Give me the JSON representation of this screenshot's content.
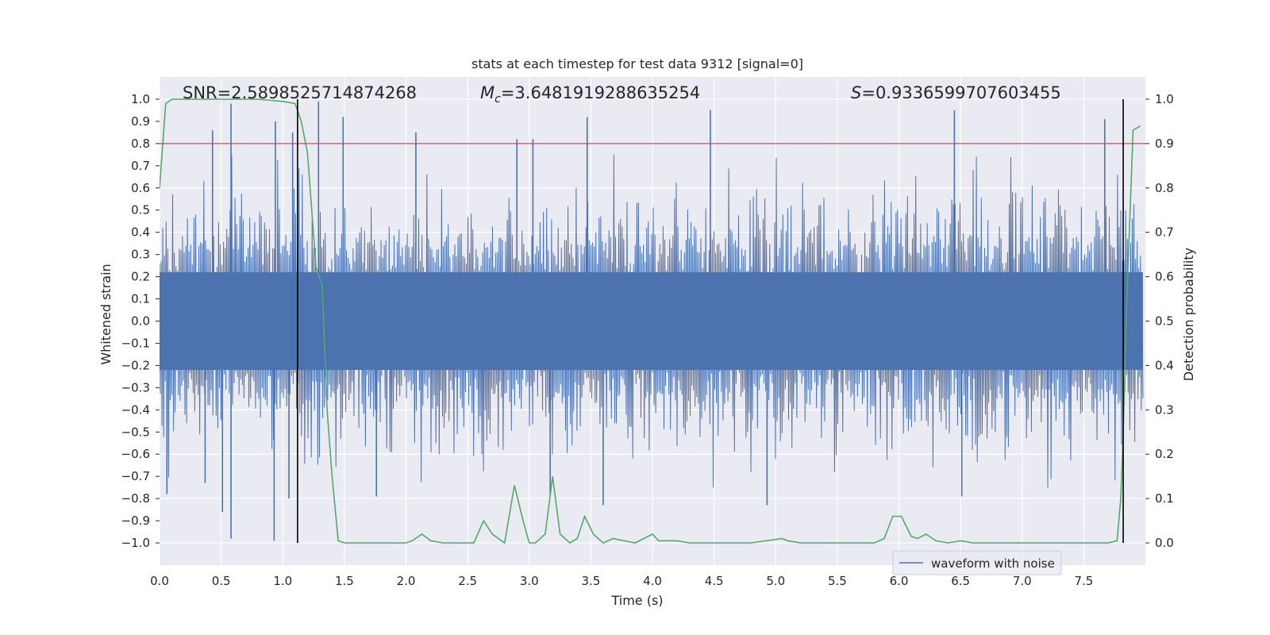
{
  "chart_data": {
    "type": "line",
    "title": "stats at each timestep for test data 9312 [signal=0]",
    "xlabel": "Time (s)",
    "ylabel_left": "Whitened strain",
    "ylabel_right": "Detection probability",
    "xlim": [
      0.0,
      8.0
    ],
    "ylim_left": [
      -1.1,
      1.1
    ],
    "ylim_right": [
      -0.05,
      1.05
    ],
    "x_ticks": [
      "0.0",
      "0.5",
      "1.0",
      "1.5",
      "2.0",
      "2.5",
      "3.0",
      "3.5",
      "4.0",
      "4.5",
      "5.0",
      "5.5",
      "6.0",
      "6.5",
      "7.0",
      "7.5"
    ],
    "y_left_ticks": [
      "1.0",
      "0.9",
      "0.8",
      "0.7",
      "0.6",
      "0.5",
      "0.4",
      "0.3",
      "0.2",
      "0.1",
      "0.0",
      "-0.1",
      "-0.2",
      "-0.3",
      "-0.4",
      "-0.5",
      "-0.6",
      "-0.7",
      "-0.8",
      "-0.9",
      "-1.0"
    ],
    "y_right_ticks": [
      "1.0",
      "0.9",
      "0.8",
      "0.7",
      "0.6",
      "0.5",
      "0.4",
      "0.3",
      "0.2",
      "0.1",
      "0.0"
    ],
    "annotations": {
      "snr": "SNR=2.5898525714874268",
      "mc_symbol": "M",
      "mc_sub": "c",
      "mc_value": "=3.6481919288635254",
      "s_symbol": "S",
      "s_value": "=0.9336599707603455"
    },
    "legend": {
      "label": "waveform with noise",
      "position": "lower-right"
    },
    "threshold_right": 0.9,
    "vlines_x": [
      1.12,
      7.82
    ],
    "waveform": {
      "name": "waveform with noise",
      "sample_count": 1200,
      "core_amplitude": 0.2,
      "peaks_positive": [
        [
          0.43,
          0.86
        ],
        [
          0.58,
          0.98
        ],
        [
          0.94,
          0.9
        ],
        [
          1.08,
          0.85
        ],
        [
          1.29,
          0.99
        ],
        [
          1.49,
          0.92
        ],
        [
          2.08,
          0.85
        ],
        [
          2.9,
          0.82
        ],
        [
          3.03,
          0.82
        ],
        [
          3.47,
          0.92
        ],
        [
          4.47,
          0.95
        ],
        [
          6.45,
          0.95
        ],
        [
          7.67,
          0.91
        ]
      ],
      "peaks_negative": [
        [
          0.06,
          -0.78
        ],
        [
          0.37,
          -0.73
        ],
        [
          0.51,
          -0.86
        ],
        [
          0.58,
          -0.98
        ],
        [
          0.93,
          -0.99
        ],
        [
          1.05,
          -0.8
        ],
        [
          1.76,
          -0.79
        ],
        [
          3.17,
          -0.79
        ],
        [
          3.6,
          -0.83
        ],
        [
          4.93,
          -0.83
        ],
        [
          6.51,
          -0.79
        ]
      ],
      "color": "#4c72b0"
    },
    "probability": {
      "name": "detection probability",
      "x": [
        0.0,
        0.05,
        0.1,
        0.2,
        0.5,
        0.8,
        1.0,
        1.1,
        1.15,
        1.2,
        1.27,
        1.32,
        1.36,
        1.4,
        1.45,
        1.5,
        1.6,
        2.0,
        2.05,
        2.13,
        2.2,
        2.3,
        2.55,
        2.63,
        2.7,
        2.8,
        2.88,
        2.95,
        3.0,
        3.05,
        3.13,
        3.19,
        3.25,
        3.33,
        3.39,
        3.45,
        3.52,
        3.6,
        3.68,
        3.86,
        4.0,
        4.05,
        4.2,
        4.3,
        4.4,
        4.8,
        5.05,
        5.1,
        5.2,
        5.8,
        5.88,
        5.95,
        6.02,
        6.1,
        6.15,
        6.22,
        6.3,
        6.4,
        6.5,
        6.6,
        7.3,
        7.6,
        7.7,
        7.77,
        7.8,
        7.82,
        7.85,
        7.9,
        7.96
      ],
      "y": [
        0.8,
        0.99,
        1.0,
        1.0,
        1.0,
        1.0,
        0.995,
        0.99,
        0.95,
        0.88,
        0.62,
        0.58,
        0.3,
        0.15,
        0.005,
        0.0,
        0.0,
        0.0,
        0.005,
        0.02,
        0.005,
        0.0,
        0.0,
        0.05,
        0.02,
        0.0,
        0.13,
        0.05,
        0.0,
        0.0,
        0.02,
        0.15,
        0.02,
        0.0,
        0.01,
        0.06,
        0.02,
        0.0,
        0.01,
        0.0,
        0.02,
        0.005,
        0.005,
        0.0,
        0.0,
        0.0,
        0.01,
        0.005,
        0.0,
        0.0,
        0.01,
        0.06,
        0.06,
        0.015,
        0.01,
        0.02,
        0.005,
        0.0,
        0.005,
        0.0,
        0.0,
        0.0,
        0.0,
        0.005,
        0.1,
        0.25,
        0.55,
        0.93,
        0.94
      ],
      "color": "#55a868"
    },
    "threshold_color": "#c44e52",
    "vline_color": "#000000",
    "axes_bg": "#eaeaf2",
    "grid_color": "#ffffff"
  }
}
